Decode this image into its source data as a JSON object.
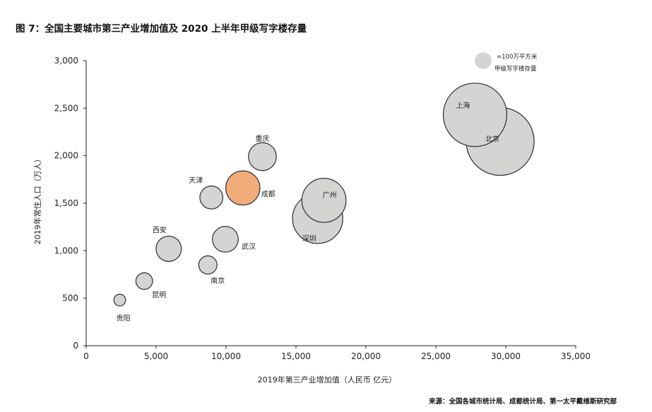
{
  "title": "图 7：全国主要城市第三产业增加值及 2020 上半年甲级写字楼存量",
  "source": "来源：全国各城市统计局、成都统计局、第一太平戴维斯研究部",
  "chart_data": {
    "type": "bubble",
    "xlabel": "2019年第三产业增加值（人民币 亿元）",
    "ylabel": "2019年常住人口（万人）",
    "xlim": [
      0,
      35000
    ],
    "ylim": [
      0,
      3000
    ],
    "xticks": [
      0,
      5000,
      10000,
      15000,
      20000,
      25000,
      30000,
      35000
    ],
    "yticks": [
      0,
      500,
      1000,
      1500,
      2000,
      2500,
      3000
    ],
    "xtick_labels": [
      "0",
      "5,000",
      "10,000",
      "15,000",
      "20,000",
      "25,000",
      "30,000",
      "35,000"
    ],
    "ytick_labels": [
      "0",
      "500",
      "1,000",
      "1,500",
      "2,000",
      "2,500",
      "3,000"
    ],
    "legend": {
      "label_line1": "=100万平方米",
      "label_line2": "甲级写字楼存量",
      "size": 1,
      "position": "top-right"
    },
    "colors": {
      "default_fill": "#d4d4d2",
      "default_stroke": "#2e2b3a",
      "highlight_fill": "#f2ac7a",
      "highlight_stroke": "#2e2b3a",
      "highlight_label": "#e8914d"
    },
    "points": [
      {
        "name": "上海",
        "x": 27800,
        "y": 2430,
        "size": 14.5
      },
      {
        "name": "北京",
        "x": 29600,
        "y": 2150,
        "size": 16.6
      },
      {
        "name": "深圳",
        "x": 16550,
        "y": 1340,
        "size": 9.1
      },
      {
        "name": "广州",
        "x": 17000,
        "y": 1530,
        "size": 7.0
      },
      {
        "name": "重庆",
        "x": 12600,
        "y": 1990,
        "size": 2.8
      },
      {
        "name": "成都",
        "x": 11200,
        "y": 1660,
        "size": 4.2,
        "highlight": true
      },
      {
        "name": "天津",
        "x": 8950,
        "y": 1560,
        "size": 1.9
      },
      {
        "name": "武汉",
        "x": 9950,
        "y": 1120,
        "size": 2.4
      },
      {
        "name": "西安",
        "x": 5900,
        "y": 1020,
        "size": 2.3
      },
      {
        "name": "南京",
        "x": 8700,
        "y": 850,
        "size": 1.2
      },
      {
        "name": "昆明",
        "x": 4150,
        "y": 680,
        "size": 1.0
      },
      {
        "name": "贵阳",
        "x": 2400,
        "y": 480,
        "size": 0.5
      }
    ]
  }
}
